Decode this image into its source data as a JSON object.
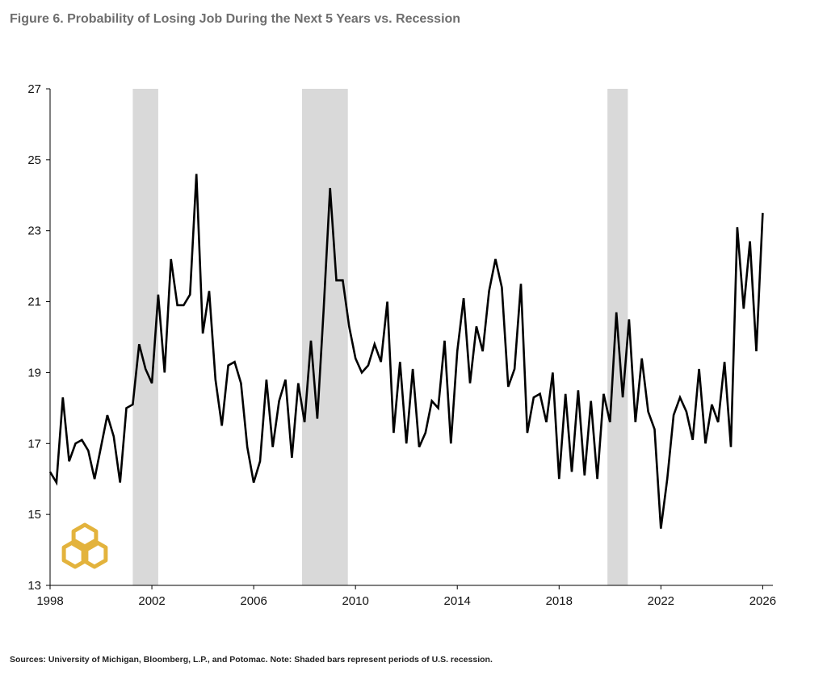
{
  "title": "Figure 6. Probability of Losing Job During the Next 5 Years vs. Recession",
  "source": "Sources: University of Michigan, Bloomberg, L.P., and Potomac. Note: Shaded bars represent periods of U.S. recession.",
  "logo_icon": "potomac-hexagon-logo-icon",
  "colors": {
    "line": "#000000",
    "recession": "#d9d9d9",
    "axis": "#000000",
    "logo": "#e3b33d",
    "title": "#6e6e6e"
  },
  "chart_data": {
    "type": "line",
    "xlim": [
      1998,
      2026.4
    ],
    "ylim": [
      13,
      27
    ],
    "xticks": [
      "1998",
      "2002",
      "2006",
      "2010",
      "2014",
      "2018",
      "2022",
      "2026"
    ],
    "yticks": [
      "13",
      "15",
      "17",
      "19",
      "21",
      "23",
      "25",
      "27"
    ],
    "grid": false,
    "legend": "none",
    "recessions": [
      [
        2001.25,
        2002.25
      ],
      [
        2007.9,
        2009.7
      ],
      [
        2019.9,
        2020.7
      ]
    ],
    "series": [
      {
        "x": [
          1998.0,
          1998.25,
          1998.5,
          1998.75,
          1999.0,
          1999.25,
          1999.5,
          1999.75,
          2000.0,
          2000.25,
          2000.5,
          2000.75,
          2001.0,
          2001.25,
          2001.5,
          2001.75,
          2002.0,
          2002.25,
          2002.5,
          2002.75,
          2003.0,
          2003.25,
          2003.5,
          2003.75,
          2004.0,
          2004.25,
          2004.5,
          2004.75,
          2005.0,
          2005.25,
          2005.5,
          2005.75,
          2006.0,
          2006.25,
          2006.5,
          2006.75,
          2007.0,
          2007.25,
          2007.5,
          2007.75,
          2008.0,
          2008.25,
          2008.5,
          2008.75,
          2009.0,
          2009.25,
          2009.5,
          2009.75,
          2010.0,
          2010.25,
          2010.5,
          2010.75,
          2011.0,
          2011.25,
          2011.5,
          2011.75,
          2012.0,
          2012.25,
          2012.5,
          2012.75,
          2013.0,
          2013.25,
          2013.5,
          2013.75,
          2014.0,
          2014.25,
          2014.5,
          2014.75,
          2015.0,
          2015.25,
          2015.5,
          2015.75,
          2016.0,
          2016.25,
          2016.5,
          2016.75,
          2017.0,
          2017.25,
          2017.5,
          2017.75,
          2018.0,
          2018.25,
          2018.5,
          2018.75,
          2019.0,
          2019.25,
          2019.5,
          2019.75,
          2020.0,
          2020.25,
          2020.5,
          2020.75,
          2021.0,
          2021.25,
          2021.5,
          2021.75,
          2022.0,
          2022.25,
          2022.5,
          2022.75,
          2023.0,
          2023.25,
          2023.5,
          2023.75,
          2024.0,
          2024.25,
          2024.5,
          2024.75,
          2025.0,
          2025.25,
          2025.5,
          2025.75,
          2026.0
        ],
        "y": [
          16.2,
          15.9,
          18.3,
          16.5,
          17.0,
          17.1,
          16.8,
          16.0,
          16.9,
          17.8,
          17.2,
          15.9,
          18.0,
          18.1,
          19.8,
          19.1,
          18.7,
          21.2,
          19.0,
          22.2,
          20.9,
          20.9,
          21.2,
          24.6,
          20.1,
          21.3,
          18.8,
          17.5,
          19.2,
          19.3,
          18.7,
          16.9,
          15.9,
          16.5,
          18.8,
          16.9,
          18.2,
          18.8,
          16.6,
          18.7,
          17.6,
          19.9,
          17.7,
          20.8,
          24.2,
          21.6,
          21.6,
          20.3,
          19.4,
          19.0,
          19.2,
          19.8,
          19.3,
          21.0,
          17.3,
          19.3,
          17.0,
          19.1,
          16.9,
          17.3,
          18.2,
          18.0,
          19.9,
          17.0,
          19.6,
          21.1,
          18.7,
          20.3,
          19.6,
          21.3,
          22.2,
          21.4,
          18.6,
          19.1,
          21.5,
          17.3,
          18.3,
          18.4,
          17.6,
          19.0,
          16.0,
          18.4,
          16.2,
          18.5,
          16.1,
          18.2,
          16.0,
          18.4,
          17.6,
          20.7,
          18.3,
          20.5,
          17.6,
          19.4,
          17.9,
          17.4,
          14.6,
          16.0,
          17.8,
          18.3,
          17.9,
          17.1,
          19.1,
          17.0,
          18.1,
          17.6,
          19.3,
          16.9,
          23.1,
          20.8,
          22.7,
          19.6,
          23.5
        ]
      }
    ]
  }
}
